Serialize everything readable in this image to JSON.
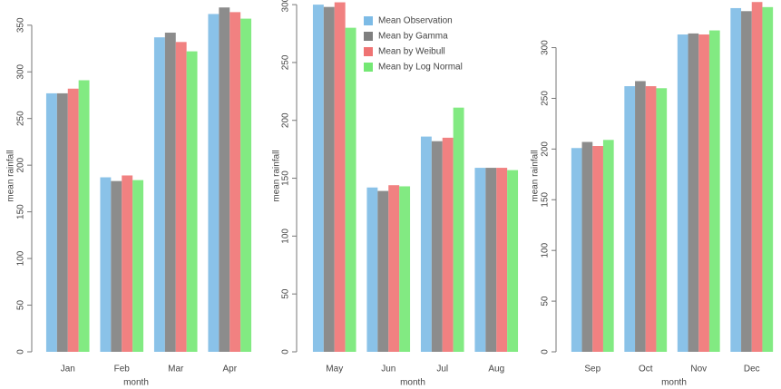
{
  "chart_data": [
    {
      "type": "bar",
      "x_label": "month",
      "y_label": "mean rainfall",
      "categories": [
        "Jan",
        "Feb",
        "Mar",
        "Apr"
      ],
      "ylim": [
        0,
        377
      ],
      "yticks": [
        0,
        50,
        100,
        150,
        200,
        250,
        300,
        350
      ],
      "series": [
        {
          "color": "#7dbbe6",
          "values": [
            277,
            187,
            337,
            362
          ]
        },
        {
          "color": "#7f7f7f",
          "values": [
            277,
            183,
            342,
            369
          ]
        },
        {
          "color": "#ef7373",
          "values": [
            282,
            189,
            332,
            364
          ]
        },
        {
          "color": "#74e874",
          "values": [
            291,
            184,
            322,
            357
          ]
        }
      ]
    },
    {
      "type": "bar",
      "x_label": "month",
      "y_label": "mean rainfall",
      "categories": [
        "May",
        "Jun",
        "Jul",
        "Aug"
      ],
      "ylim": [
        0,
        304
      ],
      "yticks": [
        0,
        50,
        100,
        150,
        200,
        250,
        300
      ],
      "legend": "top",
      "series": [
        {
          "name": "Mean Observation",
          "color": "#7dbbe6",
          "values": [
            300,
            142,
            186,
            159
          ]
        },
        {
          "name": "Mean by Gamma",
          "color": "#7f7f7f",
          "values": [
            298,
            139,
            182,
            159
          ]
        },
        {
          "name": "Mean by Weibull",
          "color": "#ef7373",
          "values": [
            302,
            144,
            185,
            159
          ]
        },
        {
          "name": "Mean by Log Normal",
          "color": "#74e874",
          "values": [
            280,
            143,
            211,
            157
          ]
        }
      ]
    },
    {
      "type": "bar",
      "x_label": "month",
      "y_label": "mean rainfall",
      "categories": [
        "Sep",
        "Oct",
        "Nov",
        "Dec"
      ],
      "ylim": [
        0,
        347
      ],
      "yticks": [
        0,
        50,
        100,
        150,
        200,
        250,
        300
      ],
      "series": [
        {
          "color": "#7dbbe6",
          "values": [
            201,
            262,
            313,
            339
          ]
        },
        {
          "color": "#7f7f7f",
          "values": [
            207,
            267,
            314,
            336
          ]
        },
        {
          "color": "#ef7373",
          "values": [
            203,
            262,
            313,
            345
          ]
        },
        {
          "color": "#74e874",
          "values": [
            209,
            260,
            317,
            340
          ]
        }
      ]
    }
  ]
}
